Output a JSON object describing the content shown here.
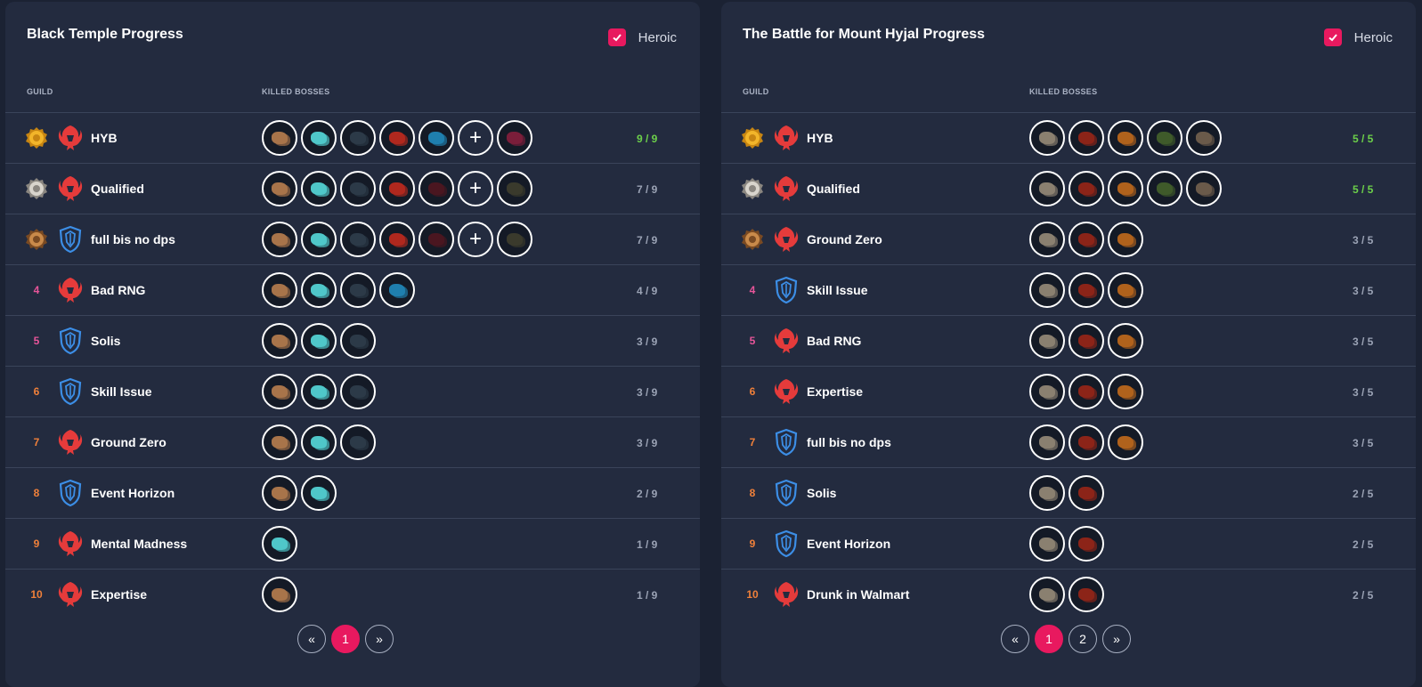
{
  "heroic_label": "Heroic",
  "col_guild": "GUILD",
  "col_killed": "KILLED BOSSES",
  "colors": {
    "accent": "#e8195f",
    "full_clear": "#6cd04a",
    "rank_pink": "#e8559a",
    "rank_orange": "#f0803a",
    "horde": "#e53b3b",
    "alliance": "#3c8ee6"
  },
  "panels": [
    {
      "title": "Black Temple Progress",
      "heroic_checked": true,
      "rows": [
        {
          "rank": "",
          "medal": "gold",
          "faction": "horde",
          "name": "HYB",
          "bosses": [
            "b1",
            "b2",
            "b3",
            "b4",
            "b5",
            "plus",
            "b9"
          ],
          "score": "9 / 9",
          "full": true
        },
        {
          "rank": "",
          "medal": "silver",
          "faction": "horde",
          "name": "Qualified",
          "bosses": [
            "b1",
            "b2",
            "b3",
            "b4",
            "b6",
            "plus",
            "b7"
          ],
          "score": "7 / 9",
          "full": false
        },
        {
          "rank": "",
          "medal": "bronze",
          "faction": "alliance",
          "name": "full bis no dps",
          "bosses": [
            "b1",
            "b2",
            "b3",
            "b4",
            "b6",
            "plus",
            "b7"
          ],
          "score": "7 / 9",
          "full": false
        },
        {
          "rank": "4",
          "faction": "horde",
          "name": "Bad RNG",
          "bosses": [
            "b1",
            "b2",
            "b3",
            "b5"
          ],
          "score": "4 / 9",
          "full": false
        },
        {
          "rank": "5",
          "faction": "alliance",
          "name": "Solis",
          "bosses": [
            "b1",
            "b2",
            "b3"
          ],
          "score": "3 / 9",
          "full": false
        },
        {
          "rank": "6",
          "faction": "alliance",
          "name": "Skill Issue",
          "bosses": [
            "b1",
            "b2",
            "b3"
          ],
          "score": "3 / 9",
          "full": false
        },
        {
          "rank": "7",
          "faction": "horde",
          "name": "Ground Zero",
          "bosses": [
            "b1",
            "b2",
            "b3"
          ],
          "score": "3 / 9",
          "full": false
        },
        {
          "rank": "8",
          "faction": "alliance",
          "name": "Event Horizon",
          "bosses": [
            "b1",
            "b2"
          ],
          "score": "2 / 9",
          "full": false
        },
        {
          "rank": "9",
          "faction": "horde",
          "name": "Mental Madness",
          "bosses": [
            "b2"
          ],
          "score": "1 / 9",
          "full": false
        },
        {
          "rank": "10",
          "faction": "horde",
          "name": "Expertise",
          "bosses": [
            "b1"
          ],
          "score": "1 / 9",
          "full": false
        }
      ],
      "pagination": [
        "«",
        "1",
        "»"
      ],
      "active_page": "1"
    },
    {
      "title": "The Battle for Mount Hyjal Progress",
      "heroic_checked": true,
      "rows": [
        {
          "rank": "",
          "medal": "gold",
          "faction": "horde",
          "name": "HYB",
          "bosses": [
            "h1",
            "h2",
            "h3",
            "h4",
            "h5"
          ],
          "score": "5 / 5",
          "full": true
        },
        {
          "rank": "",
          "medal": "silver",
          "faction": "horde",
          "name": "Qualified",
          "bosses": [
            "h1",
            "h2",
            "h3",
            "h4",
            "h5"
          ],
          "score": "5 / 5",
          "full": true
        },
        {
          "rank": "",
          "medal": "bronze",
          "faction": "horde",
          "name": "Ground Zero",
          "bosses": [
            "h1",
            "h2",
            "h3"
          ],
          "score": "3 / 5",
          "full": false
        },
        {
          "rank": "4",
          "faction": "alliance",
          "name": "Skill Issue",
          "bosses": [
            "h1",
            "h2",
            "h3"
          ],
          "score": "3 / 5",
          "full": false
        },
        {
          "rank": "5",
          "faction": "horde",
          "name": "Bad RNG",
          "bosses": [
            "h1",
            "h2",
            "h3"
          ],
          "score": "3 / 5",
          "full": false
        },
        {
          "rank": "6",
          "faction": "horde",
          "name": "Expertise",
          "bosses": [
            "h1",
            "h2",
            "h3"
          ],
          "score": "3 / 5",
          "full": false
        },
        {
          "rank": "7",
          "faction": "alliance",
          "name": "full bis no dps",
          "bosses": [
            "h1",
            "h2",
            "h3"
          ],
          "score": "3 / 5",
          "full": false
        },
        {
          "rank": "8",
          "faction": "alliance",
          "name": "Solis",
          "bosses": [
            "h1",
            "h2"
          ],
          "score": "2 / 5",
          "full": false
        },
        {
          "rank": "9",
          "faction": "alliance",
          "name": "Event Horizon",
          "bosses": [
            "h1",
            "h2"
          ],
          "score": "2 / 5",
          "full": false
        },
        {
          "rank": "10",
          "faction": "horde",
          "name": "Drunk in Walmart",
          "bosses": [
            "h1",
            "h2"
          ],
          "score": "2 / 5",
          "full": false
        }
      ],
      "pagination": [
        "«",
        "1",
        "2",
        "»"
      ],
      "active_page": "1"
    }
  ],
  "boss_colors": {
    "b1": "#a8744a",
    "b2": "#4fc7c9",
    "b3": "#2c3a48",
    "b4": "#b0281e",
    "b5": "#1f7fae",
    "b6": "#4a1620",
    "b7": "#3a3a2c",
    "b9": "#7a1e3a",
    "h1": "#8a8070",
    "h2": "#8c2418",
    "h3": "#b0621c",
    "h4": "#3f5a2a",
    "h5": "#6a5a4a"
  }
}
